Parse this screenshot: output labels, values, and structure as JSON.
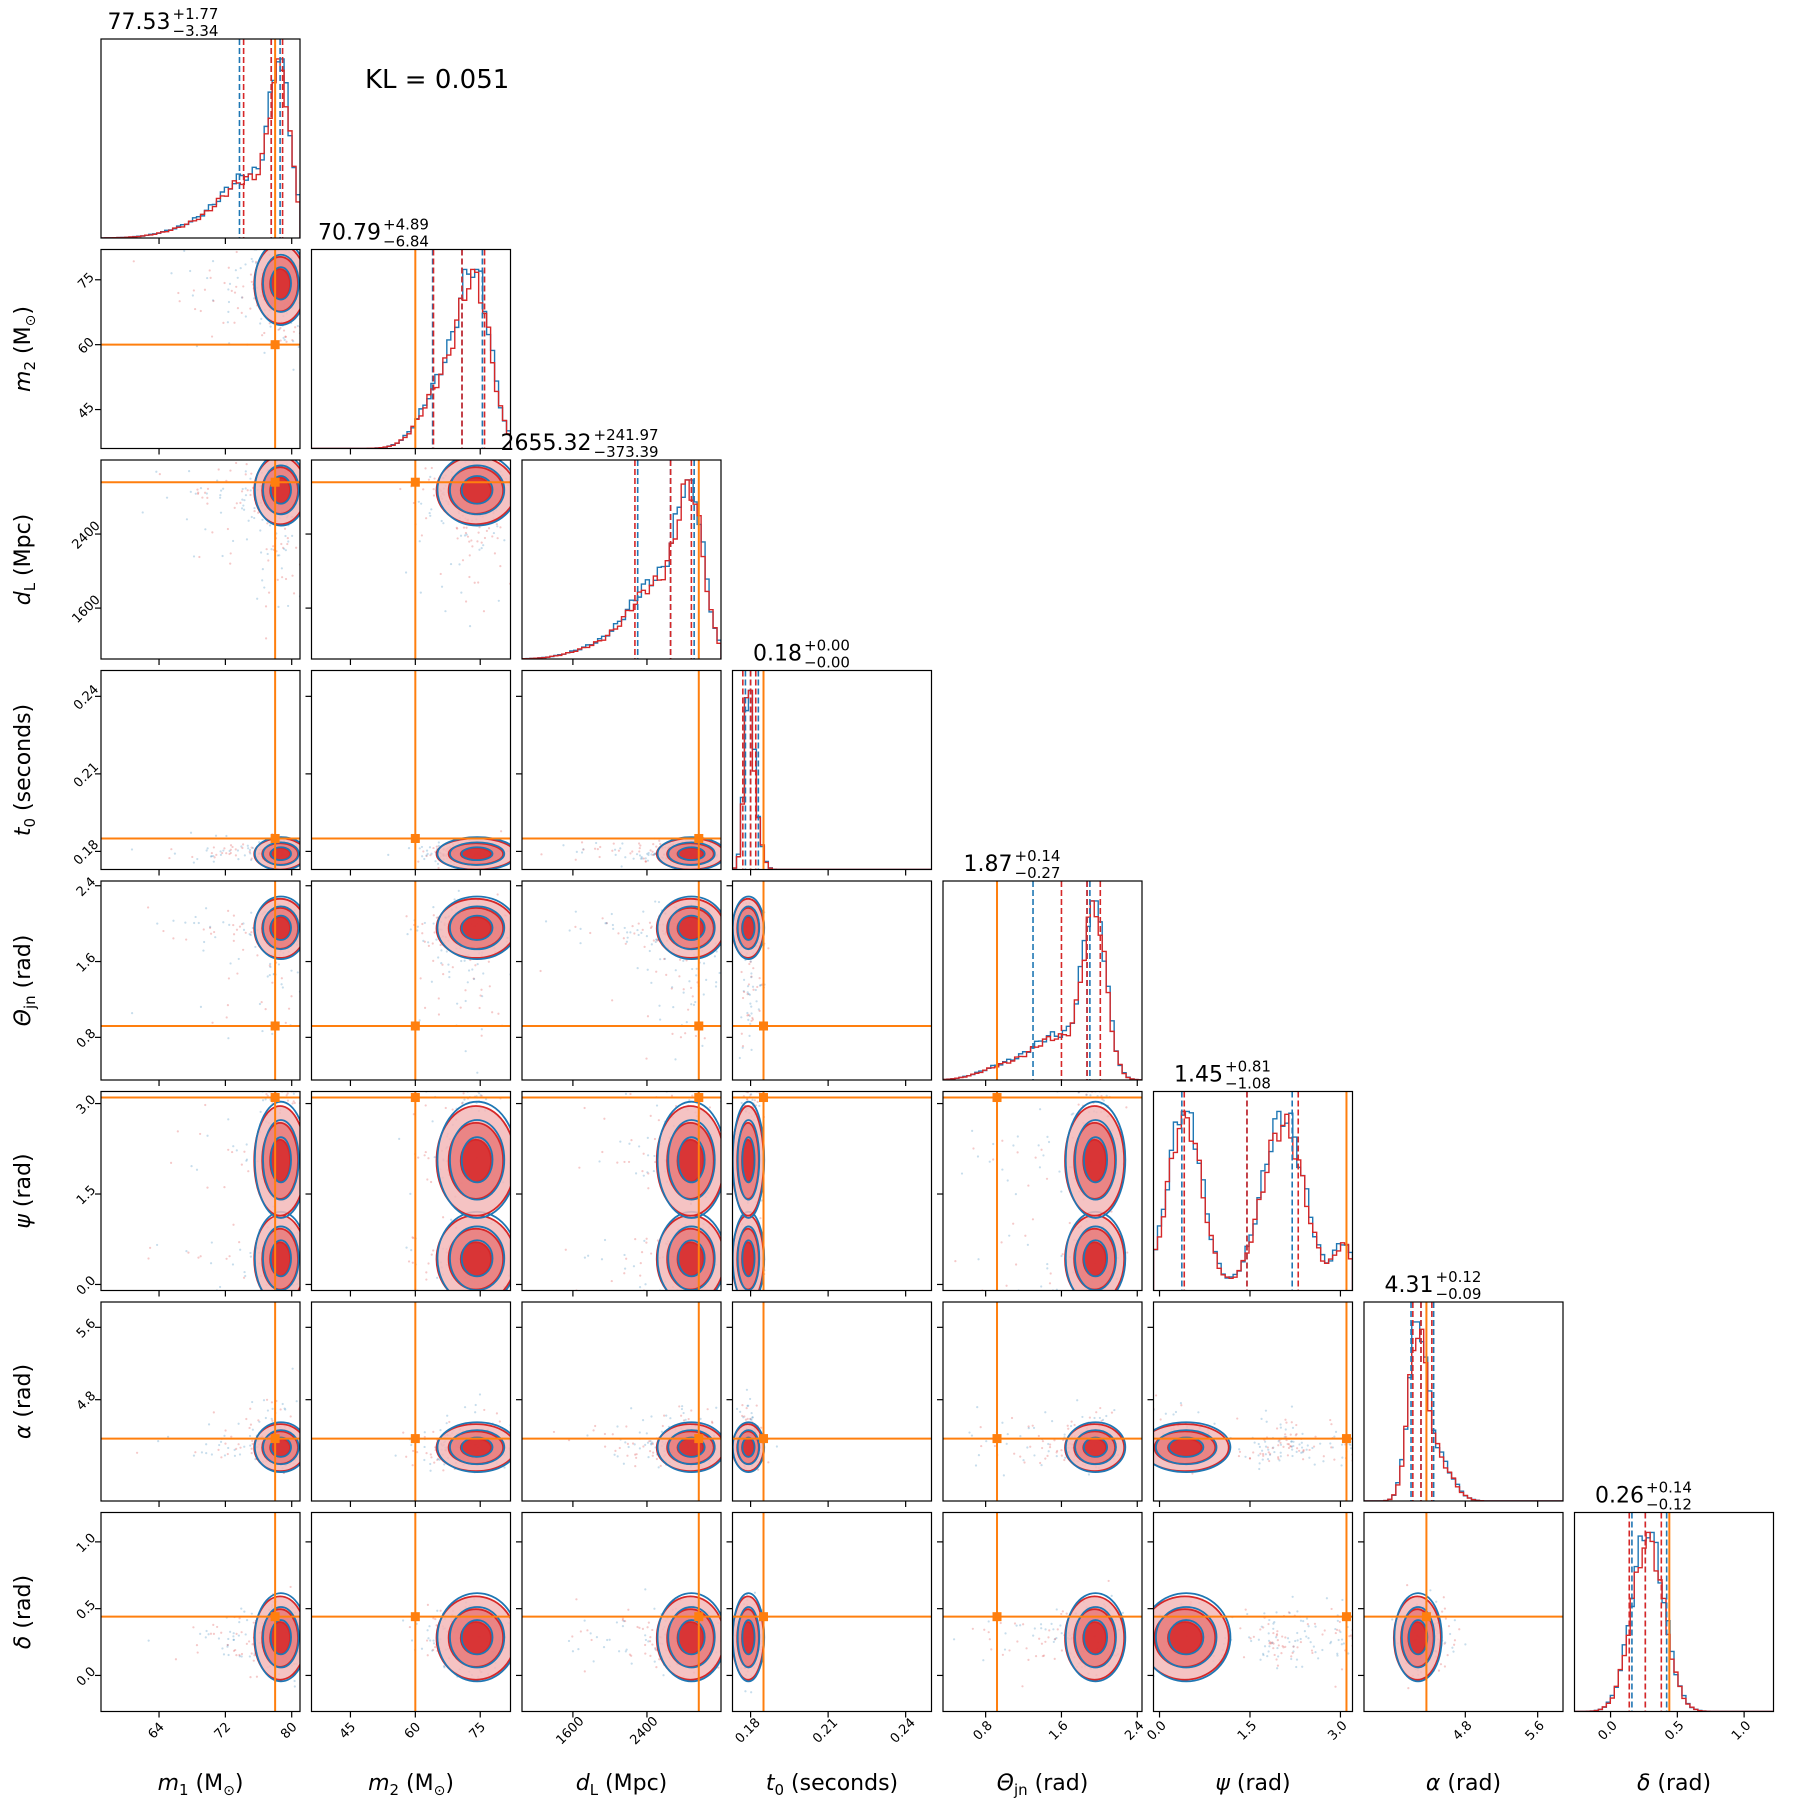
{
  "figure": {
    "annotation": "KL = 0.051",
    "colors": {
      "run_a": "#1f77b4",
      "run_b": "#d62728",
      "truth": "#ff7f0e"
    }
  },
  "chart_data": {
    "type": "corner",
    "series": [
      {
        "color": "#1f77b4"
      },
      {
        "color": "#d62728"
      }
    ],
    "parameters": [
      {
        "axis_label": "m1 (M⊙)",
        "axis_tex": [
          "m",
          "1",
          " (M",
          "⊙",
          ")"
        ],
        "range": [
          57,
          81
        ],
        "ticks": [
          "64",
          "72",
          "80"
        ],
        "tick_values": [
          64,
          72,
          80
        ],
        "truth": 78.0,
        "median": 77.53,
        "plus": "+1.77",
        "minus": "−3.34",
        "title_value": "77.53",
        "quantile_lines": {
          "run_a": [
            73.7,
            78.6
          ],
          "run_b": [
            74.2,
            78.9
          ]
        }
      },
      {
        "axis_label": "m2 (M⊙)",
        "axis_tex": [
          "m",
          "2",
          " (M",
          "⊙",
          ")"
        ],
        "range": [
          36,
          82
        ],
        "ticks": [
          "45",
          "60",
          "75"
        ],
        "tick_values": [
          45,
          60,
          75
        ],
        "truth": 60.0,
        "median": 70.79,
        "plus": "+4.89",
        "minus": "−6.84",
        "title_value": "70.79",
        "quantile_lines": {
          "run_a": [
            64.0,
            75.5
          ],
          "run_b": [
            64.2,
            76.0
          ]
        }
      },
      {
        "axis_label": "dL (Mpc)",
        "axis_tex": [
          "d",
          "L",
          " (Mpc)",
          "",
          ""
        ],
        "range": [
          1050,
          3200
        ],
        "ticks": [
          "1600",
          "2400"
        ],
        "tick_values": [
          1600,
          2400
        ],
        "truth": 2960,
        "median": 2655.32,
        "plus": "+241.97",
        "minus": "−373.39",
        "title_value": "2655.32",
        "quantile_lines": {
          "run_a": [
            2300,
            2910
          ],
          "run_b": [
            2270,
            2880
          ]
        }
      },
      {
        "axis_label": "t0 (seconds)",
        "axis_tex": [
          "t",
          "0",
          " (seconds)",
          "",
          ""
        ],
        "range": [
          0.173,
          0.25
        ],
        "ticks": [
          "0.18",
          "0.21",
          "0.24"
        ],
        "tick_values": [
          0.18,
          0.21,
          0.24
        ],
        "truth": 0.185,
        "median": 0.18,
        "plus": "+0.00",
        "minus": "−0.00",
        "title_value": "0.18",
        "quantile_lines": {
          "run_a": [
            0.178,
            0.183
          ],
          "run_b": [
            0.177,
            0.182
          ]
        }
      },
      {
        "axis_label": "Θjn (rad)",
        "axis_tex": [
          "Θ",
          "jn",
          " (rad)",
          "",
          ""
        ],
        "range": [
          0.35,
          2.45
        ],
        "ticks": [
          "0.8",
          "1.6",
          "2.4"
        ],
        "tick_values": [
          0.8,
          1.6,
          2.4
        ],
        "truth": 0.92,
        "median": 1.87,
        "plus": "+0.14",
        "minus": "−0.27",
        "title_value": "1.87",
        "quantile_lines": {
          "run_a": [
            1.3,
            1.9
          ],
          "run_b": [
            1.6,
            2.01
          ]
        }
      },
      {
        "axis_label": "ψ (rad)",
        "axis_tex": [
          "ψ",
          "",
          " (rad)",
          "",
          ""
        ],
        "range": [
          -0.1,
          3.2
        ],
        "ticks": [
          "0.0",
          "1.5",
          "3.0"
        ],
        "tick_values": [
          0.0,
          1.5,
          3.0
        ],
        "truth": 3.1,
        "median": 1.45,
        "plus": "+0.81",
        "minus": "−1.08",
        "title_value": "1.45",
        "quantile_lines": {
          "run_a": [
            0.37,
            2.2
          ],
          "run_b": [
            0.41,
            2.3
          ]
        }
      },
      {
        "axis_label": "α (rad)",
        "axis_tex": [
          "α",
          "",
          " (rad)",
          "",
          ""
        ],
        "range": [
          3.68,
          5.88
        ],
        "ticks": [
          "4.8",
          "5.6"
        ],
        "tick_values": [
          4.8,
          5.6
        ],
        "truth": 4.37,
        "median": 4.31,
        "plus": "+0.12",
        "minus": "−0.09",
        "title_value": "4.31",
        "quantile_lines": {
          "run_a": [
            4.2,
            4.45
          ],
          "run_b": [
            4.22,
            4.43
          ]
        }
      },
      {
        "axis_label": "δ (rad)",
        "axis_tex": [
          "δ",
          "",
          " (rad)",
          "",
          ""
        ],
        "range": [
          -0.27,
          1.22
        ],
        "ticks": [
          "0.0",
          "0.5",
          "1.0"
        ],
        "tick_values": [
          0.0,
          0.5,
          1.0
        ],
        "truth": 0.44,
        "median": 0.26,
        "plus": "+0.14",
        "minus": "−0.12",
        "title_value": "0.26",
        "quantile_lines": {
          "run_a": [
            0.16,
            0.42
          ],
          "run_b": [
            0.14,
            0.38
          ]
        }
      }
    ],
    "left_ticks": {
      "1": {
        "ticks": [
          "45",
          "60",
          "75"
        ],
        "values": [
          45,
          60,
          75
        ]
      },
      "2": {
        "ticks": [
          "1600",
          "2400"
        ],
        "values": [
          1600,
          2400
        ]
      },
      "3": {
        "ticks": [
          "0.18",
          "0.21",
          "0.24"
        ],
        "values": [
          0.18,
          0.21,
          0.24
        ]
      },
      "4": {
        "ticks": [
          "0.8",
          "1.6",
          "2.4"
        ],
        "values": [
          0.8,
          1.6,
          2.4
        ]
      },
      "5": {
        "ticks": [
          "0.0",
          "1.5",
          "3.0"
        ],
        "values": [
          0.0,
          1.5,
          3.0
        ]
      },
      "6": {
        "ticks": [
          "4.8",
          "5.6"
        ],
        "values": [
          4.8,
          5.6
        ]
      },
      "7": {
        "ticks": [
          "0.0",
          "0.5",
          "1.0"
        ],
        "values": [
          0.0,
          0.5,
          1.0
        ]
      }
    }
  }
}
